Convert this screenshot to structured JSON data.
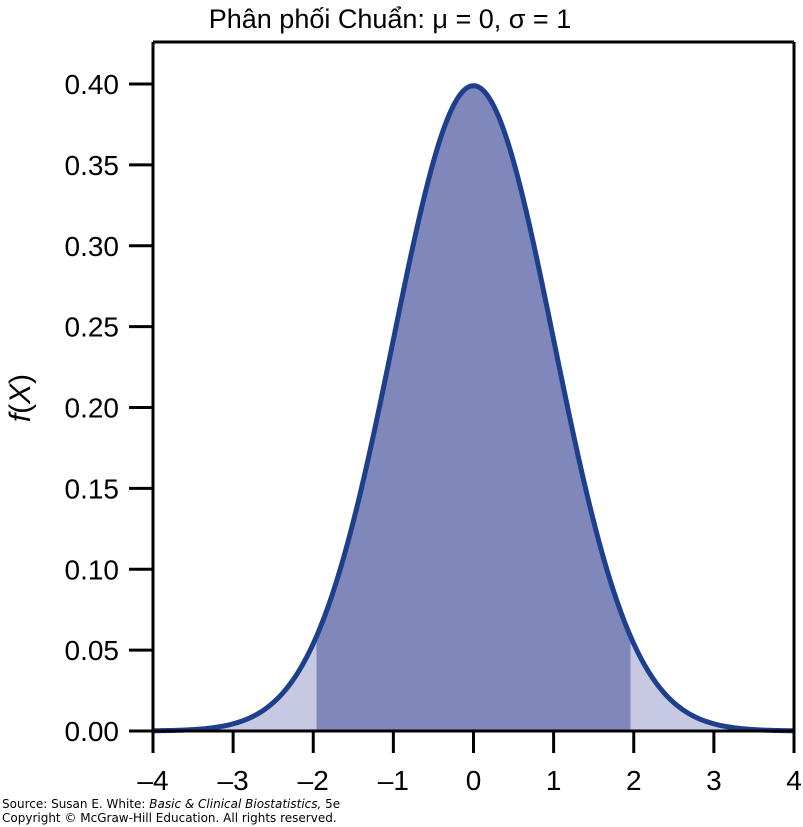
{
  "chart_data": {
    "type": "area",
    "title": "Phân phối Chuẩn: μ = 0, σ = 1",
    "ylabel": "f(X)",
    "xlabel": "",
    "mu": 0,
    "sigma": 1,
    "xlim": [
      -4,
      4
    ],
    "ylim": [
      0,
      0.42
    ],
    "x_ticks": [
      -4,
      -3,
      -2,
      -1,
      0,
      1,
      2,
      3,
      4
    ],
    "x_tick_labels": [
      "–4",
      "–3",
      "–2",
      "–1",
      "0",
      "1",
      "2",
      "3",
      "4"
    ],
    "y_ticks": [
      0,
      0.05,
      0.1,
      0.15,
      0.2,
      0.25,
      0.3,
      0.35,
      0.4
    ],
    "y_tick_labels": [
      "0.00",
      "0.05",
      "0.10",
      "0.15",
      "0.20",
      "0.25",
      "0.30",
      "0.35",
      "0.40"
    ],
    "shaded_central_region": [
      -1.96,
      1.96
    ],
    "grid": false,
    "colors": {
      "curve": "#1e3f8b",
      "central_fill": "#8088bb",
      "tail_fill": "#c7c9e2",
      "axis": "#000000"
    }
  },
  "source": {
    "prefix": "Source: Susan E. White: ",
    "book": "Basic & Clinical Biostatistics,",
    "edition": " 5e",
    "copyright": "Copyright © McGraw-Hill Education. All rights reserved."
  }
}
